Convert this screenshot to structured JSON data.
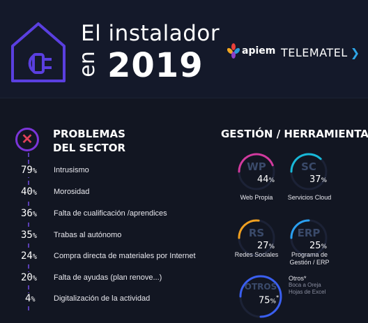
{
  "header": {
    "title_line1": "El instalador",
    "title_en": "en",
    "title_year": "2019",
    "apiem_logo": "apiem",
    "telematel_logo": "TELEMATEL",
    "telematel_icon": "chevron-right-icon"
  },
  "problemas": {
    "title_line1": "PROBLEMAS",
    "title_line2": "DEL SECTOR",
    "icon": "x-icon",
    "items": [
      {
        "pct": "79",
        "label": "Intrusismo"
      },
      {
        "pct": "40",
        "label": "Morosidad"
      },
      {
        "pct": "36",
        "label": "Falta de cualificación /aprendices"
      },
      {
        "pct": "35",
        "label": "Trabas al autónomo"
      },
      {
        "pct": "24",
        "label": "Compra directa de materiales por Internet"
      },
      {
        "pct": "20",
        "label": "Falta de ayudas (plan renove...)"
      },
      {
        "pct": "4",
        "label": "Digitalización de la actividad"
      }
    ]
  },
  "gestion": {
    "title": "GESTIÓN / HERRAMIENTAS",
    "items": [
      {
        "abbr": "WP",
        "pct": "44",
        "pct_value": 44,
        "label": "Web Propia",
        "color": "#d23a9e"
      },
      {
        "abbr": "SC",
        "pct": "37",
        "pct_value": 37,
        "label": "Servicios Cloud",
        "color": "#18b8d8"
      },
      {
        "abbr": "RS",
        "pct": "27",
        "pct_value": 27,
        "label": "Redes Sociales",
        "color": "#f0a020"
      },
      {
        "abbr": "ERP",
        "pct": "25",
        "pct_value": 25,
        "label": "Programa de Gestión / ERP",
        "color": "#2a9ff0"
      }
    ],
    "otros": {
      "abbr": "OTROS",
      "pct": "75",
      "pct_value": 75,
      "asterisk": "*",
      "color": "#3a5ff0",
      "title": "Otros*",
      "sub1": "Boca a Oreja",
      "sub2": "Hojas de Excel"
    }
  },
  "pct_sign": "%"
}
